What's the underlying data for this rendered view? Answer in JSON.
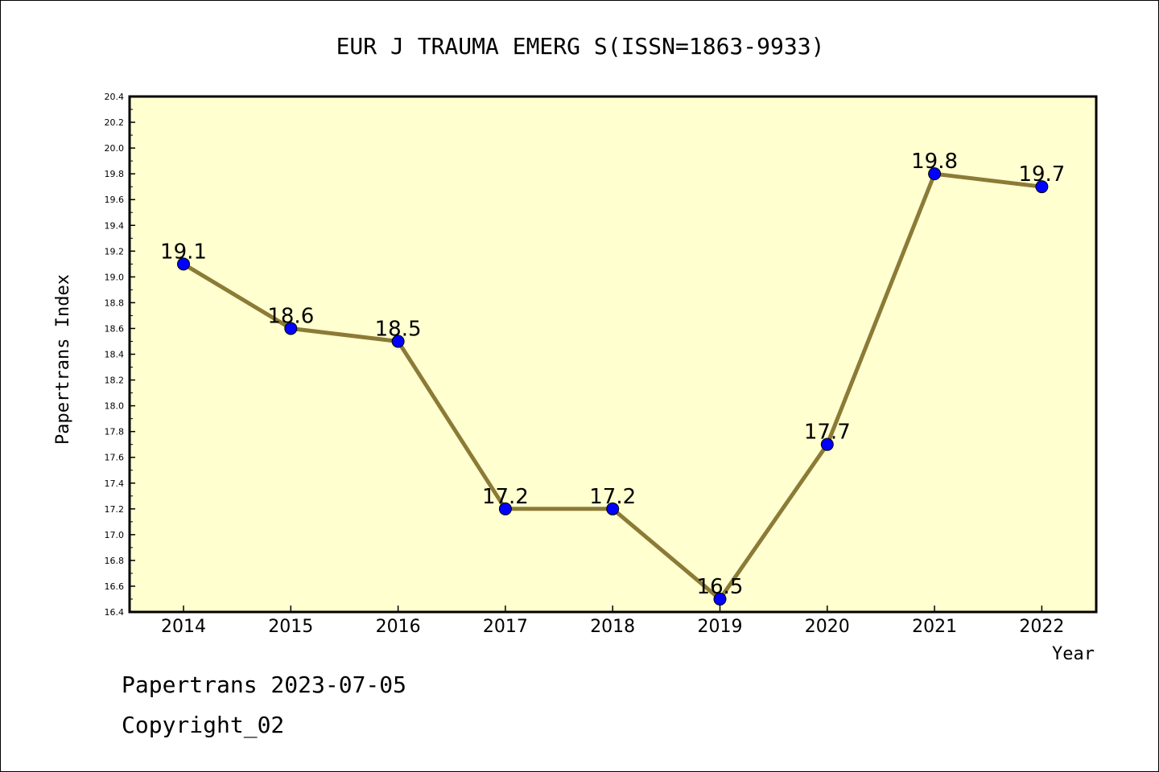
{
  "chart_data": {
    "type": "line",
    "title": "EUR J TRAUMA EMERG S(ISSN=1863-9933)",
    "xlabel": "Year",
    "ylabel": "Papertrans Index",
    "categories": [
      "2014",
      "2015",
      "2016",
      "2017",
      "2018",
      "2019",
      "2020",
      "2021",
      "2022"
    ],
    "values": [
      19.1,
      18.6,
      18.5,
      17.2,
      17.2,
      16.5,
      17.7,
      19.8,
      19.7
    ],
    "data_labels": [
      "19.1",
      "18.6",
      "18.5",
      "17.2",
      "17.2",
      "16.5",
      "17.7",
      "19.8",
      "19.7"
    ],
    "ylim": [
      16.4,
      20.4
    ],
    "yticks": [
      "16.4",
      "16.6",
      "16.8",
      "17.0",
      "17.2",
      "17.4",
      "17.6",
      "17.8",
      "18.0",
      "18.2",
      "18.4",
      "18.6",
      "18.8",
      "19.0",
      "19.2",
      "19.4",
      "19.6",
      "19.8",
      "20.0",
      "20.2",
      "20.4"
    ],
    "grid": false,
    "colors": {
      "plot_background": "#ffffd0",
      "line": "#8b7b36",
      "marker": "#0000ff"
    }
  },
  "footer": {
    "date_line": "Papertrans 2023-07-05",
    "copyright_line": "Copyright_02"
  }
}
